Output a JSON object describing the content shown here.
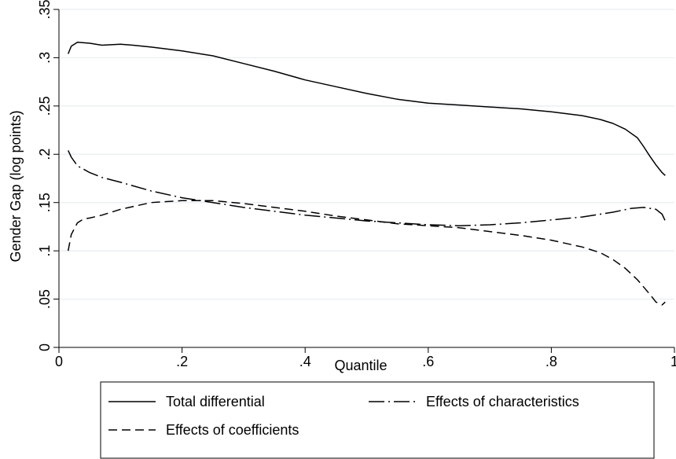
{
  "chart_data": {
    "type": "line",
    "xlabel": "Quantile",
    "ylabel": "Gender Gap (log points)",
    "xlim": [
      0,
      1
    ],
    "ylim": [
      0,
      0.35
    ],
    "x_ticks": [
      0,
      0.2,
      0.4,
      0.6,
      0.8,
      1
    ],
    "x_tick_labels": [
      "0",
      ".2",
      ".4",
      ".6",
      ".8",
      "1"
    ],
    "y_ticks": [
      0,
      0.05,
      0.1,
      0.15,
      0.2,
      0.25,
      0.3,
      0.35
    ],
    "y_tick_labels": [
      "0",
      ".05",
      ".1",
      ".15",
      ".2",
      ".25",
      ".3",
      ".35"
    ],
    "grid": "horizontal",
    "legend_position": "bottom",
    "series": [
      {
        "name": "Total differential",
        "dash": "solid",
        "x": [
          0.015,
          0.02,
          0.03,
          0.05,
          0.07,
          0.1,
          0.12,
          0.15,
          0.2,
          0.25,
          0.3,
          0.35,
          0.4,
          0.45,
          0.5,
          0.55,
          0.6,
          0.65,
          0.7,
          0.75,
          0.8,
          0.85,
          0.88,
          0.9,
          0.92,
          0.94,
          0.95,
          0.96,
          0.97,
          0.98,
          0.985
        ],
        "values": [
          0.304,
          0.312,
          0.316,
          0.315,
          0.313,
          0.314,
          0.313,
          0.311,
          0.307,
          0.302,
          0.294,
          0.286,
          0.277,
          0.27,
          0.263,
          0.257,
          0.253,
          0.251,
          0.249,
          0.247,
          0.244,
          0.24,
          0.236,
          0.232,
          0.226,
          0.217,
          0.208,
          0.198,
          0.189,
          0.181,
          0.178
        ]
      },
      {
        "name": "Effects of characteristics",
        "dash": "longdash-dot",
        "x": [
          0.015,
          0.02,
          0.03,
          0.05,
          0.07,
          0.1,
          0.15,
          0.2,
          0.25,
          0.3,
          0.35,
          0.4,
          0.45,
          0.5,
          0.55,
          0.6,
          0.65,
          0.7,
          0.75,
          0.8,
          0.85,
          0.9,
          0.93,
          0.95,
          0.97,
          0.98,
          0.985
        ],
        "values": [
          0.204,
          0.197,
          0.188,
          0.181,
          0.176,
          0.171,
          0.162,
          0.155,
          0.15,
          0.145,
          0.141,
          0.137,
          0.134,
          0.131,
          0.129,
          0.127,
          0.126,
          0.127,
          0.129,
          0.132,
          0.135,
          0.14,
          0.144,
          0.145,
          0.143,
          0.138,
          0.131
        ]
      },
      {
        "name": "Effects of coefficients",
        "dash": "dash",
        "x": [
          0.015,
          0.02,
          0.03,
          0.04,
          0.05,
          0.07,
          0.1,
          0.15,
          0.2,
          0.25,
          0.3,
          0.35,
          0.4,
          0.45,
          0.5,
          0.55,
          0.6,
          0.65,
          0.7,
          0.75,
          0.8,
          0.85,
          0.88,
          0.9,
          0.92,
          0.94,
          0.96,
          0.97,
          0.98,
          0.985
        ],
        "values": [
          0.1,
          0.117,
          0.129,
          0.133,
          0.134,
          0.137,
          0.143,
          0.15,
          0.152,
          0.152,
          0.149,
          0.145,
          0.141,
          0.136,
          0.132,
          0.128,
          0.126,
          0.124,
          0.12,
          0.116,
          0.111,
          0.104,
          0.098,
          0.091,
          0.082,
          0.07,
          0.055,
          0.047,
          0.044,
          0.047
        ]
      }
    ]
  }
}
